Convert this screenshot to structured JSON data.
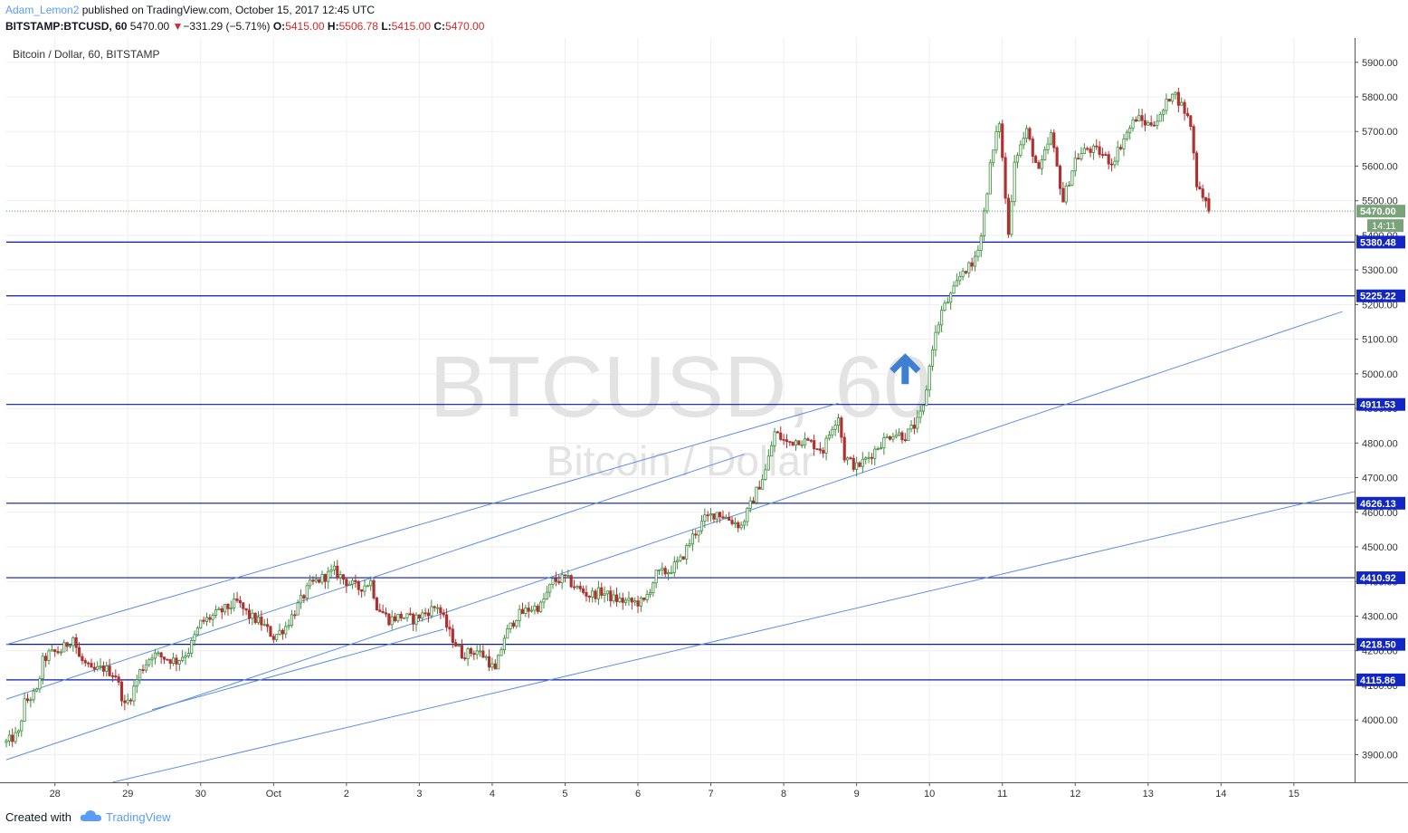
{
  "header": {
    "author": "Adam_Lemon2",
    "published": "published on TradingView.com, October 15, 2017 12:45 UTC",
    "symbol": "BITSTAMP:BTCUSD, 60",
    "last": "5470.00",
    "change_arrow": "▼",
    "change": "−331.29 (−5.71%)",
    "o_label": "O:",
    "o": "5415.00",
    "h_label": "H:",
    "h": "5506.78",
    "l_label": "L:",
    "l": "5415.00",
    "c_label": "C:",
    "c": "5470.00"
  },
  "footer": {
    "created": "Created with",
    "brand": "TradingView",
    "logo_icon": "tradingview-cloud-icon"
  },
  "colors": {
    "up": "#3a8f3a",
    "down": "#b03030",
    "line": "#0a1aa8",
    "trend": "#5d8fe0",
    "arrow": "#3d7fd0",
    "badge": "#1226c4"
  },
  "chart_data": {
    "type": "candlestick",
    "title": "Bitcoin / Dollar, 60, BITSTAMP",
    "watermark": "BTCUSD, 60",
    "watermark_sub": "Bitcoin / Dollar",
    "x_tick_labels": [
      "28",
      "29",
      "30",
      "Oct",
      "2",
      "3",
      "4",
      "5",
      "6",
      "7",
      "8",
      "9",
      "10",
      "11",
      "12",
      "13",
      "14",
      "15"
    ],
    "y_tick_labels": [
      "3900.00",
      "4000.00",
      "4100.00",
      "4200.00",
      "4300.00",
      "4400.00",
      "4500.00",
      "4600.00",
      "4700.00",
      "4800.00",
      "4900.00",
      "5000.00",
      "5100.00",
      "5200.00",
      "5300.00",
      "5400.00",
      "5500.00",
      "5600.00",
      "5700.00",
      "5800.00",
      "5900.00"
    ],
    "ylim": [
      3820,
      5970
    ],
    "x_index_range": [
      0,
      444
    ],
    "last_price": {
      "value": 5470.0,
      "label": "5470.00",
      "countdown": "14:11"
    },
    "horizontal_levels": [
      5380.48,
      5225.22,
      4911.53,
      4626.13,
      4410.92,
      4218.5,
      4115.86
    ],
    "horizontal_level_labels": [
      "5380.48",
      "5225.22",
      "4911.53",
      "4626.13",
      "4410.92",
      "4218.50",
      "4115.86"
    ],
    "trendlines": [
      [
        {
          "x": 0,
          "y": 4218
        },
        {
          "x": 274,
          "y": 4915
        }
      ],
      [
        {
          "x": 0,
          "y": 4060
        },
        {
          "x": 243,
          "y": 4768
        }
      ],
      [
        {
          "x": 0,
          "y": 3885
        },
        {
          "x": 440,
          "y": 5180
        }
      ],
      [
        {
          "x": 35,
          "y": 3820
        },
        {
          "x": 444,
          "y": 4660
        }
      ],
      [
        {
          "x": 48,
          "y": 4030
        },
        {
          "x": 144,
          "y": 4262
        }
      ]
    ],
    "annotation_arrow": {
      "x": 296,
      "y": 5020,
      "direction": "up"
    },
    "anchors": [
      [
        0,
        3935
      ],
      [
        4,
        3960
      ],
      [
        6,
        4050
      ],
      [
        10,
        4080
      ],
      [
        12,
        4170
      ],
      [
        14,
        4190
      ],
      [
        18,
        4200
      ],
      [
        22,
        4240
      ],
      [
        24,
        4180
      ],
      [
        28,
        4140
      ],
      [
        32,
        4150
      ],
      [
        36,
        4130
      ],
      [
        39,
        4040
      ],
      [
        41,
        4070
      ],
      [
        44,
        4140
      ],
      [
        48,
        4190
      ],
      [
        52,
        4180
      ],
      [
        56,
        4170
      ],
      [
        60,
        4200
      ],
      [
        64,
        4280
      ],
      [
        68,
        4300
      ],
      [
        72,
        4320
      ],
      [
        76,
        4340
      ],
      [
        80,
        4300
      ],
      [
        84,
        4280
      ],
      [
        88,
        4240
      ],
      [
        92,
        4270
      ],
      [
        96,
        4330
      ],
      [
        100,
        4390
      ],
      [
        104,
        4410
      ],
      [
        108,
        4430
      ],
      [
        112,
        4400
      ],
      [
        116,
        4380
      ],
      [
        120,
        4400
      ],
      [
        122,
        4330
      ],
      [
        126,
        4290
      ],
      [
        130,
        4300
      ],
      [
        134,
        4290
      ],
      [
        138,
        4310
      ],
      [
        142,
        4330
      ],
      [
        146,
        4250
      ],
      [
        150,
        4190
      ],
      [
        155,
        4200
      ],
      [
        158,
        4180
      ],
      [
        161,
        4140
      ],
      [
        164,
        4240
      ],
      [
        168,
        4300
      ],
      [
        172,
        4320
      ],
      [
        176,
        4330
      ],
      [
        180,
        4400
      ],
      [
        184,
        4410
      ],
      [
        188,
        4380
      ],
      [
        192,
        4360
      ],
      [
        196,
        4370
      ],
      [
        200,
        4350
      ],
      [
        205,
        4340
      ],
      [
        210,
        4340
      ],
      [
        214,
        4420
      ],
      [
        218,
        4430
      ],
      [
        222,
        4460
      ],
      [
        226,
        4530
      ],
      [
        230,
        4580
      ],
      [
        234,
        4600
      ],
      [
        238,
        4580
      ],
      [
        242,
        4560
      ],
      [
        246,
        4640
      ],
      [
        250,
        4720
      ],
      [
        253,
        4830
      ],
      [
        257,
        4800
      ],
      [
        261,
        4810
      ],
      [
        265,
        4800
      ],
      [
        269,
        4780
      ],
      [
        272,
        4850
      ],
      [
        274,
        4880
      ],
      [
        276,
        4760
      ],
      [
        280,
        4730
      ],
      [
        284,
        4760
      ],
      [
        288,
        4800
      ],
      [
        292,
        4830
      ],
      [
        296,
        4820
      ],
      [
        300,
        4860
      ],
      [
        302,
        4900
      ],
      [
        305,
        5080
      ],
      [
        308,
        5180
      ],
      [
        312,
        5240
      ],
      [
        315,
        5300
      ],
      [
        318,
        5310
      ],
      [
        321,
        5400
      ],
      [
        324,
        5600
      ],
      [
        327,
        5730
      ],
      [
        330,
        5400
      ],
      [
        332,
        5620
      ],
      [
        336,
        5700
      ],
      [
        340,
        5580
      ],
      [
        344,
        5690
      ],
      [
        348,
        5500
      ],
      [
        352,
        5620
      ],
      [
        356,
        5650
      ],
      [
        360,
        5640
      ],
      [
        364,
        5610
      ],
      [
        368,
        5680
      ],
      [
        372,
        5740
      ],
      [
        376,
        5720
      ],
      [
        380,
        5740
      ],
      [
        384,
        5820
      ],
      [
        388,
        5760
      ],
      [
        390,
        5720
      ],
      [
        392,
        5550
      ],
      [
        394,
        5520
      ],
      [
        396,
        5470
      ]
    ]
  }
}
